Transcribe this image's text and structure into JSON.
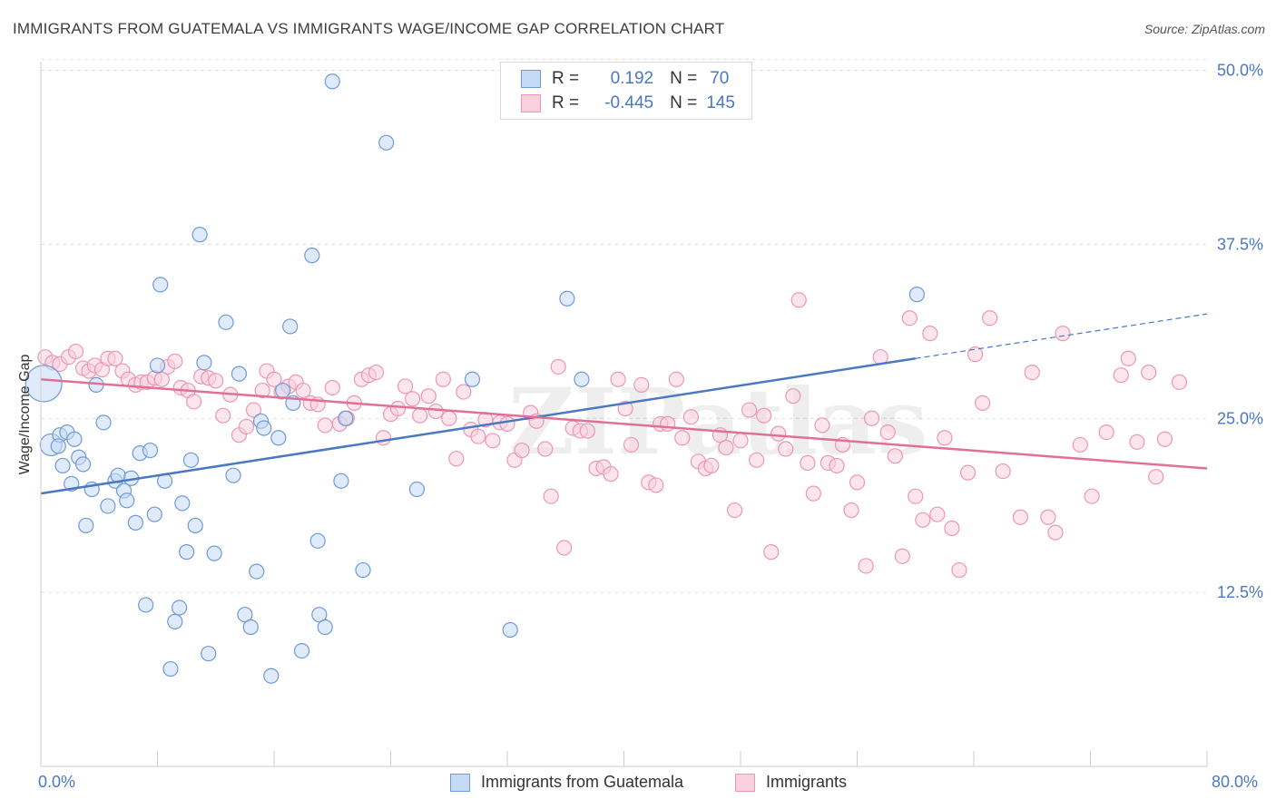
{
  "header": {
    "title": "IMMIGRANTS FROM GUATEMALA VS IMMIGRANTS WAGE/INCOME GAP CORRELATION CHART",
    "source": "Source: ZipAtlas.com"
  },
  "colors": {
    "blue": "#4a78c2",
    "blue_fill": "#c5daf5",
    "blue_stroke": "#6f9ad6",
    "pink": "#e07098",
    "pink_fill": "#f9d0dd",
    "pink_stroke": "#ec97b4",
    "grid": "#dddddd",
    "axis_text": "#4a78c2"
  },
  "legend": {
    "r_label": "R =",
    "n_label": "N =",
    "rows": [
      {
        "r": "0.192",
        "n": "70"
      },
      {
        "r": "-0.445",
        "n": "145"
      }
    ]
  },
  "chart_data": {
    "type": "scatter",
    "xlabel": "",
    "ylabel": "Wage/Income Gap",
    "xlim": [
      0,
      80
    ],
    "ylim": [
      0,
      52
    ],
    "x_tick_labels": [
      "0.0%",
      "80.0%"
    ],
    "y_ticks": [
      12.5,
      25.0,
      37.5,
      50.0
    ],
    "y_tick_labels": [
      "12.5%",
      "25.0%",
      "37.5%",
      "50.0%"
    ],
    "grid": "horizontal dashed",
    "legend_placement": "top-center",
    "watermark": "ZIPatlas",
    "series": [
      {
        "name": "Immigrants from Guatemala",
        "color": "blue",
        "trend": {
          "x": [
            0,
            60
          ],
          "y": [
            19.6,
            29.3
          ],
          "dashed_to": [
            80,
            32.5
          ]
        },
        "points": [
          [
            0.2,
            27.5
          ],
          [
            0.7,
            23.1
          ],
          [
            1.3,
            23.8
          ],
          [
            1.2,
            23.0
          ],
          [
            1.5,
            21.6
          ],
          [
            1.8,
            24.0
          ],
          [
            2.1,
            20.3
          ],
          [
            2.3,
            23.5
          ],
          [
            2.6,
            22.2
          ],
          [
            2.9,
            21.7
          ],
          [
            3.1,
            17.3
          ],
          [
            3.5,
            19.9
          ],
          [
            3.8,
            27.4
          ],
          [
            4.3,
            24.7
          ],
          [
            4.6,
            18.7
          ],
          [
            5.1,
            20.5
          ],
          [
            5.3,
            20.9
          ],
          [
            5.7,
            19.8
          ],
          [
            5.9,
            19.1
          ],
          [
            6.2,
            20.7
          ],
          [
            6.5,
            17.5
          ],
          [
            6.8,
            22.5
          ],
          [
            7.2,
            11.6
          ],
          [
            7.5,
            22.7
          ],
          [
            7.8,
            18.1
          ],
          [
            8.0,
            28.8
          ],
          [
            8.2,
            34.6
          ],
          [
            8.5,
            20.5
          ],
          [
            8.9,
            7.0
          ],
          [
            9.2,
            10.4
          ],
          [
            9.5,
            11.4
          ],
          [
            9.7,
            18.9
          ],
          [
            10.0,
            15.4
          ],
          [
            10.3,
            22.0
          ],
          [
            10.6,
            17.3
          ],
          [
            10.9,
            38.2
          ],
          [
            11.2,
            29.0
          ],
          [
            11.5,
            8.1
          ],
          [
            11.9,
            15.3
          ],
          [
            12.7,
            31.9
          ],
          [
            13.2,
            20.9
          ],
          [
            13.6,
            28.2
          ],
          [
            14.0,
            10.9
          ],
          [
            14.4,
            10.0
          ],
          [
            14.8,
            14.0
          ],
          [
            15.1,
            24.8
          ],
          [
            15.3,
            24.3
          ],
          [
            15.8,
            6.5
          ],
          [
            16.3,
            23.6
          ],
          [
            16.6,
            27.0
          ],
          [
            17.1,
            31.6
          ],
          [
            17.3,
            26.1
          ],
          [
            17.9,
            8.3
          ],
          [
            18.6,
            36.7
          ],
          [
            19.0,
            16.2
          ],
          [
            19.1,
            10.9
          ],
          [
            19.5,
            10.0
          ],
          [
            20.0,
            49.2
          ],
          [
            20.6,
            20.5
          ],
          [
            20.9,
            25.0
          ],
          [
            22.1,
            14.1
          ],
          [
            23.7,
            44.8
          ],
          [
            25.8,
            19.9
          ],
          [
            29.6,
            27.8
          ],
          [
            32.2,
            9.8
          ],
          [
            36.1,
            33.6
          ],
          [
            37.1,
            27.8
          ],
          [
            60.1,
            33.9
          ]
        ],
        "big_points": [
          [
            0.2,
            27.5
          ],
          [
            0.7,
            23.1
          ]
        ]
      },
      {
        "name": "Immigrants",
        "color": "pink",
        "trend": {
          "x": [
            0,
            80
          ],
          "y": [
            27.8,
            21.4
          ]
        },
        "points": [
          [
            0.3,
            29.4
          ],
          [
            0.8,
            29.0
          ],
          [
            1.3,
            28.9
          ],
          [
            1.9,
            29.4
          ],
          [
            2.4,
            29.8
          ],
          [
            2.9,
            28.6
          ],
          [
            3.3,
            28.4
          ],
          [
            3.7,
            28.8
          ],
          [
            4.2,
            28.5
          ],
          [
            4.6,
            29.3
          ],
          [
            5.1,
            29.3
          ],
          [
            5.6,
            28.4
          ],
          [
            6.0,
            27.8
          ],
          [
            6.5,
            27.4
          ],
          [
            6.9,
            27.6
          ],
          [
            7.3,
            27.6
          ],
          [
            7.8,
            27.9
          ],
          [
            8.3,
            27.8
          ],
          [
            8.7,
            28.7
          ],
          [
            9.2,
            29.1
          ],
          [
            9.6,
            27.2
          ],
          [
            10.1,
            27.0
          ],
          [
            10.5,
            26.2
          ],
          [
            11.0,
            28.0
          ],
          [
            11.5,
            27.9
          ],
          [
            12.0,
            27.7
          ],
          [
            12.5,
            25.2
          ],
          [
            13.0,
            26.7
          ],
          [
            13.6,
            23.8
          ],
          [
            14.1,
            24.4
          ],
          [
            14.6,
            25.6
          ],
          [
            15.2,
            27.0
          ],
          [
            15.5,
            28.4
          ],
          [
            16.0,
            27.8
          ],
          [
            16.5,
            26.9
          ],
          [
            17.0,
            27.3
          ],
          [
            17.5,
            27.6
          ],
          [
            18.0,
            27.0
          ],
          [
            18.5,
            26.1
          ],
          [
            19.0,
            26.0
          ],
          [
            19.5,
            24.5
          ],
          [
            20.0,
            27.2
          ],
          [
            20.5,
            24.6
          ],
          [
            21.0,
            25.0
          ],
          [
            21.5,
            26.1
          ],
          [
            22.0,
            27.8
          ],
          [
            22.5,
            28.1
          ],
          [
            23.0,
            28.3
          ],
          [
            23.5,
            23.6
          ],
          [
            24.0,
            25.3
          ],
          [
            24.5,
            25.7
          ],
          [
            25.0,
            27.3
          ],
          [
            25.5,
            26.4
          ],
          [
            26.0,
            25.2
          ],
          [
            26.6,
            26.6
          ],
          [
            27.1,
            25.5
          ],
          [
            27.6,
            27.8
          ],
          [
            28.0,
            25.0
          ],
          [
            28.5,
            22.1
          ],
          [
            29.0,
            26.9
          ],
          [
            29.5,
            24.2
          ],
          [
            30.0,
            23.7
          ],
          [
            30.5,
            24.9
          ],
          [
            31.0,
            23.4
          ],
          [
            31.5,
            24.7
          ],
          [
            32.0,
            24.6
          ],
          [
            32.5,
            22.0
          ],
          [
            33.0,
            22.7
          ],
          [
            33.6,
            25.4
          ],
          [
            34.0,
            24.8
          ],
          [
            34.6,
            22.8
          ],
          [
            35.0,
            19.4
          ],
          [
            35.5,
            28.7
          ],
          [
            35.9,
            15.7
          ],
          [
            36.5,
            24.3
          ],
          [
            37.0,
            24.1
          ],
          [
            37.5,
            24.1
          ],
          [
            38.1,
            21.4
          ],
          [
            38.6,
            21.5
          ],
          [
            39.1,
            21.0
          ],
          [
            39.6,
            27.8
          ],
          [
            40.1,
            25.7
          ],
          [
            40.5,
            23.1
          ],
          [
            41.2,
            27.4
          ],
          [
            41.7,
            20.4
          ],
          [
            42.2,
            20.2
          ],
          [
            42.5,
            24.6
          ],
          [
            43.0,
            24.6
          ],
          [
            43.6,
            27.8
          ],
          [
            44.0,
            23.6
          ],
          [
            44.6,
            25.1
          ],
          [
            45.1,
            21.9
          ],
          [
            45.6,
            21.4
          ],
          [
            46.0,
            21.6
          ],
          [
            46.6,
            23.8
          ],
          [
            47.0,
            22.9
          ],
          [
            47.6,
            18.4
          ],
          [
            48.0,
            23.4
          ],
          [
            48.6,
            25.6
          ],
          [
            49.1,
            22.0
          ],
          [
            49.6,
            25.2
          ],
          [
            50.1,
            15.4
          ],
          [
            50.6,
            23.9
          ],
          [
            51.1,
            22.8
          ],
          [
            51.6,
            26.6
          ],
          [
            52.0,
            33.5
          ],
          [
            52.6,
            21.8
          ],
          [
            53.0,
            19.6
          ],
          [
            53.6,
            24.5
          ],
          [
            54.0,
            21.8
          ],
          [
            54.6,
            21.6
          ],
          [
            55.0,
            23.1
          ],
          [
            55.6,
            18.4
          ],
          [
            56.0,
            20.4
          ],
          [
            56.6,
            14.4
          ],
          [
            57.0,
            25.0
          ],
          [
            57.6,
            29.4
          ],
          [
            58.1,
            24.0
          ],
          [
            58.6,
            22.3
          ],
          [
            59.1,
            15.1
          ],
          [
            59.6,
            32.2
          ],
          [
            60.0,
            19.4
          ],
          [
            60.5,
            17.7
          ],
          [
            61.0,
            31.1
          ],
          [
            61.5,
            18.1
          ],
          [
            62.0,
            23.6
          ],
          [
            62.5,
            17.1
          ],
          [
            63.0,
            14.1
          ],
          [
            63.6,
            21.1
          ],
          [
            64.1,
            29.6
          ],
          [
            64.6,
            26.1
          ],
          [
            65.1,
            32.2
          ],
          [
            66.0,
            21.2
          ],
          [
            67.2,
            17.9
          ],
          [
            68.0,
            28.3
          ],
          [
            69.1,
            17.9
          ],
          [
            69.6,
            16.8
          ],
          [
            70.1,
            31.1
          ],
          [
            71.3,
            23.1
          ],
          [
            72.1,
            19.4
          ],
          [
            73.1,
            24.0
          ],
          [
            74.1,
            28.1
          ],
          [
            74.6,
            29.3
          ],
          [
            75.2,
            23.3
          ],
          [
            76.0,
            28.3
          ],
          [
            76.5,
            20.8
          ],
          [
            77.1,
            23.5
          ],
          [
            78.1,
            27.6
          ]
        ]
      }
    ]
  },
  "bottom_legend": {
    "items": [
      "Immigrants from Guatemala",
      "Immigrants"
    ]
  }
}
